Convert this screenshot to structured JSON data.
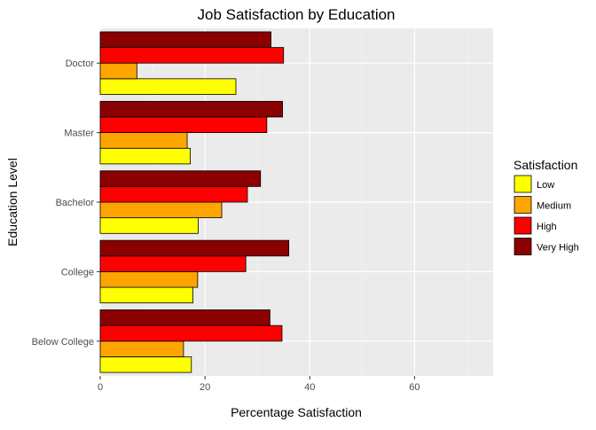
{
  "chart_data": {
    "type": "bar",
    "orientation": "horizontal",
    "title": "Job Satisfaction by Education",
    "xlabel": "Percentage Satisfaction",
    "ylabel": "Education Level",
    "xlim": [
      0,
      75
    ],
    "xticks": [
      0,
      20,
      40,
      60
    ],
    "grid": true,
    "legend_position": "right",
    "categories": [
      "Below College",
      "College",
      "Bachelor",
      "Master",
      "Doctor"
    ],
    "legend": {
      "title": "Satisfaction"
    },
    "series": [
      {
        "name": "Low",
        "color": "#FFFF00",
        "values": [
          17.4,
          17.7,
          18.7,
          17.2,
          25.9
        ]
      },
      {
        "name": "Medium",
        "color": "#FFA500",
        "values": [
          15.9,
          18.6,
          23.2,
          16.6,
          7.0
        ]
      },
      {
        "name": "High",
        "color": "#FF0000",
        "values": [
          34.7,
          27.8,
          28.1,
          31.8,
          35.0
        ]
      },
      {
        "name": "Very High",
        "color": "#8B0000",
        "values": [
          32.4,
          36.0,
          30.6,
          34.8,
          32.6
        ]
      }
    ]
  }
}
